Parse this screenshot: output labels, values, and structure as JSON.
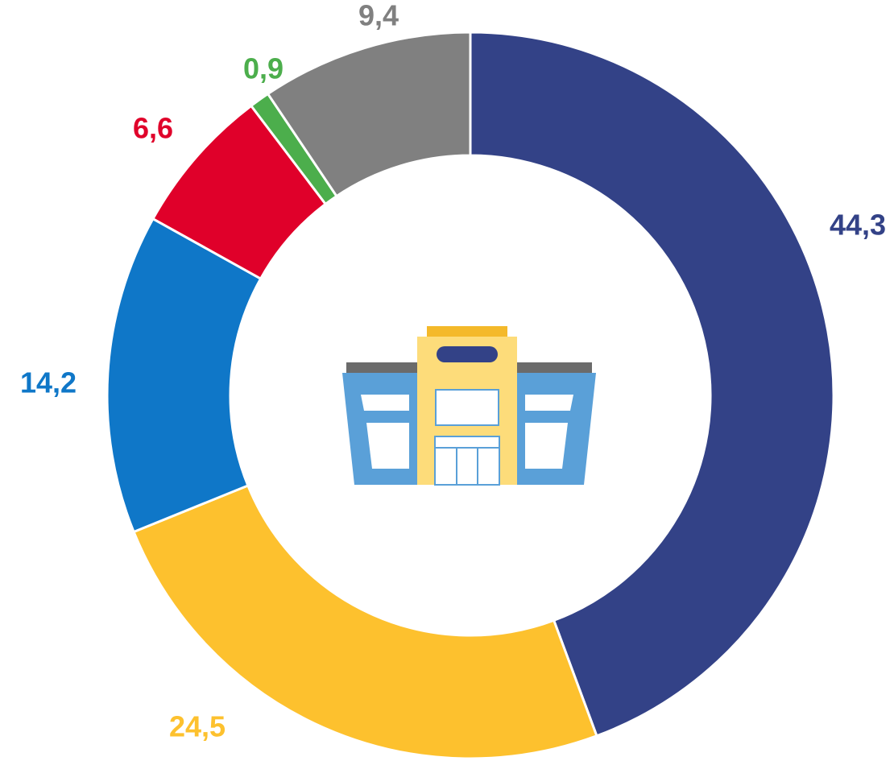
{
  "chart_data": {
    "type": "donut",
    "values": [
      44.3,
      24.5,
      14.2,
      6.6,
      0.9,
      9.4
    ],
    "value_labels": [
      "44,3",
      "24,5",
      "14,2",
      "6,6",
      "0,9",
      "9,4"
    ],
    "colors": [
      "#334287",
      "#fdc12e",
      "#0f77c8",
      "#e0002a",
      "#4cae4c",
      "#808080"
    ]
  }
}
